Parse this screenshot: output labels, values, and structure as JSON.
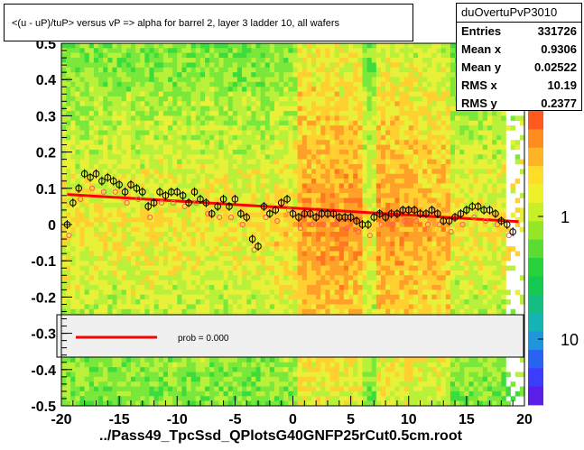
{
  "chart_data": {
    "type": "scatter",
    "title": "<(u - uP)/tuP> versus   vP => alpha for barrel 2, layer 3 ladder 10, all wafers",
    "xlabel": "../Pass49_TpcSsd_QPlotsG40GNFP25rCut0.5cm.root",
    "ylabel": "",
    "xlim": [
      -20,
      20
    ],
    "ylim": [
      -0.5,
      0.5
    ],
    "x_ticks": [
      "-20",
      "-15",
      "-10",
      "-5",
      "0",
      "5",
      "10",
      "15",
      "20"
    ],
    "y_ticks": [
      "-0.5",
      "-0.4",
      "-0.3",
      "-0.2",
      "-0.1",
      "0",
      "0.1",
      "0.2",
      "0.3",
      "0.4",
      "0.5"
    ],
    "z_ticks": [
      "1",
      "10"
    ],
    "colors": {
      "fit": "#ff0000",
      "points": "#000000",
      "points_alt": "#ff5a5a"
    },
    "series": [
      {
        "values": [
          [
            -19.5,
            0.0
          ],
          [
            -19,
            0.06
          ],
          [
            -18.5,
            0.1
          ],
          [
            -18,
            0.14
          ],
          [
            -17.5,
            0.13
          ],
          [
            -17,
            0.14
          ],
          [
            -16.5,
            0.12
          ],
          [
            -16,
            0.13
          ],
          [
            -15.5,
            0.12
          ],
          [
            -15,
            0.11
          ],
          [
            -14.5,
            0.09
          ],
          [
            -14,
            0.11
          ],
          [
            -13.5,
            0.1
          ],
          [
            -13,
            0.09
          ],
          [
            -12.5,
            0.05
          ],
          [
            -12,
            0.06
          ],
          [
            -11.5,
            0.09
          ],
          [
            -11,
            0.08
          ],
          [
            -10.5,
            0.09
          ],
          [
            -10,
            0.09
          ],
          [
            -9.5,
            0.08
          ],
          [
            -9,
            0.06
          ],
          [
            -8.5,
            0.09
          ],
          [
            -8,
            0.07
          ],
          [
            -7.5,
            0.06
          ],
          [
            -7,
            0.03
          ],
          [
            -6.5,
            0.05
          ],
          [
            -6,
            0.07
          ],
          [
            -5.5,
            0.05
          ],
          [
            -5,
            0.07
          ],
          [
            -4.5,
            0.03
          ],
          [
            -4,
            0.02
          ],
          [
            -3.5,
            -0.04
          ],
          [
            -3,
            -0.06
          ],
          [
            -2.5,
            0.05
          ],
          [
            -2,
            0.03
          ],
          [
            -1.5,
            0.04
          ],
          [
            -1,
            0.06
          ],
          [
            -0.5,
            0.07
          ],
          [
            0,
            0.03
          ],
          [
            0.5,
            0.02
          ],
          [
            1,
            0.03
          ],
          [
            1.5,
            0.03
          ],
          [
            2,
            0.02
          ],
          [
            2.5,
            0.03
          ],
          [
            3,
            0.03
          ],
          [
            3.5,
            0.03
          ],
          [
            4,
            0.02
          ],
          [
            4.5,
            0.02
          ],
          [
            5,
            0.02
          ],
          [
            5.5,
            0.01
          ],
          [
            6,
            0.0
          ],
          [
            6.5,
            0.0
          ],
          [
            7,
            0.02
          ],
          [
            7.5,
            0.03
          ],
          [
            8,
            0.02
          ],
          [
            8.5,
            0.03
          ],
          [
            9,
            0.03
          ],
          [
            9.5,
            0.04
          ],
          [
            10,
            0.04
          ],
          [
            10.5,
            0.04
          ],
          [
            11,
            0.03
          ],
          [
            11.5,
            0.03
          ],
          [
            12,
            0.04
          ],
          [
            12.5,
            0.03
          ],
          [
            13,
            0.01
          ],
          [
            13.5,
            0.01
          ],
          [
            14,
            0.02
          ],
          [
            14.5,
            0.03
          ],
          [
            15,
            0.04
          ],
          [
            15.5,
            0.05
          ],
          [
            16,
            0.05
          ],
          [
            16.5,
            0.04
          ],
          [
            17,
            0.04
          ],
          [
            17.5,
            0.03
          ],
          [
            18,
            0.01
          ],
          [
            18.5,
            0.0
          ],
          [
            19,
            -0.02
          ]
        ]
      }
    ],
    "fit_line": {
      "x": [
        -19.5,
        19.5
      ],
      "y": [
        0.083,
        0.008
      ]
    },
    "legend": {
      "label": "prob = 0.000",
      "placement": "bottom"
    },
    "stats": {
      "name": "duOvertuPvP3010",
      "rows": [
        {
          "label": "Entries",
          "value": "331726"
        },
        {
          "label": "Mean x",
          "value": "0.9306"
        },
        {
          "label": "Mean y",
          "value": "0.02522"
        },
        {
          "label": "RMS x",
          "value": "10.19"
        },
        {
          "label": "RMS y",
          "value": "0.2377"
        }
      ]
    }
  }
}
